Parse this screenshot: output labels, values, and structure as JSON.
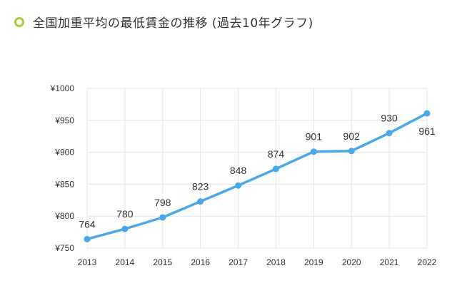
{
  "heading": {
    "title": "全国加重平均の最低賃金の推移 (過去10年グラフ)"
  },
  "colors": {
    "accent_bullet": "#a6cc38",
    "line": "#4aa8e8",
    "grid": "#e6e6e6"
  },
  "chart_data": {
    "type": "line",
    "categories": [
      "2013",
      "2014",
      "2015",
      "2016",
      "2017",
      "2018",
      "2019",
      "2020",
      "2021",
      "2022"
    ],
    "series": [
      {
        "values": [
          764,
          780,
          798,
          823,
          848,
          874,
          901,
          902,
          930,
          961
        ]
      }
    ],
    "data_labels": [
      "764",
      "780",
      "798",
      "823",
      "848",
      "874",
      "901",
      "902",
      "930",
      "961"
    ],
    "y_ticks": [
      "¥750",
      "¥800",
      "¥850",
      "¥900",
      "¥950",
      "¥1000"
    ],
    "ylim": [
      750,
      1000
    ],
    "grid": true,
    "title": "",
    "xlabel": "",
    "ylabel": ""
  }
}
